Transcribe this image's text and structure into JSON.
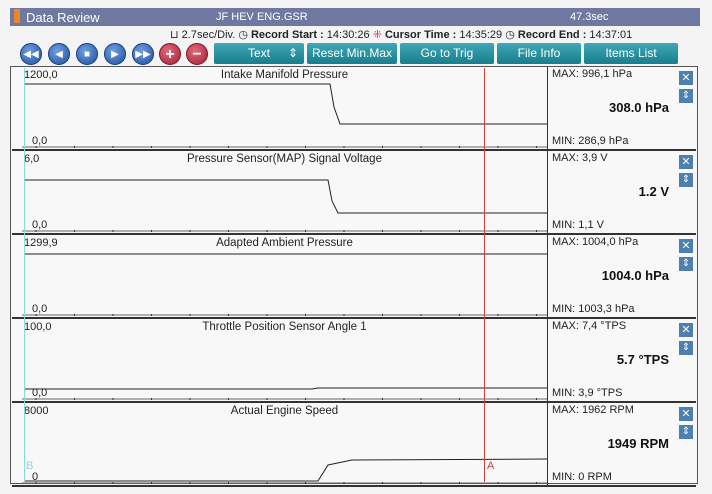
{
  "title": {
    "app": "Data Review",
    "file": "JF HEV ENG.GSR",
    "duration": "47.3sec"
  },
  "info": {
    "div": "2.7sec/Div.",
    "record_start_label": "Record Start :",
    "record_start": "14:30:26",
    "cursor_label": "Cursor Time :",
    "cursor": "14:35:29",
    "record_end_label": "Record End :",
    "record_end": "14:37:01"
  },
  "toolbar": {
    "text": "Text",
    "reset": "Reset Min.Max",
    "trig": "Go to Trig",
    "file_info": "File Info",
    "items": "Items List"
  },
  "markers": {
    "a": "A",
    "b": "B"
  },
  "panels": [
    {
      "title": "Intake Manifold Pressure",
      "ymax": "1200,0",
      "ymin": "0,0",
      "max": "MAX: 996,1 hPa",
      "min": "MIN: 286,9 hPa",
      "value": "308.0 hPa"
    },
    {
      "title": "Pressure Sensor(MAP) Signal Voltage",
      "ymax": "6,0",
      "ymin": "0,0",
      "max": "MAX:   3,9 V",
      "min": "MIN:   1,1 V",
      "value": "1.2 V"
    },
    {
      "title": "Adapted Ambient Pressure",
      "ymax": "1299,9",
      "ymin": "0,0",
      "max": "MAX: 1004,0 hPa",
      "min": "MIN: 1003,3 hPa",
      "value": "1004.0 hPa"
    },
    {
      "title": "Throttle Position Sensor Angle 1",
      "ymax": "100,0",
      "ymin": "0,0",
      "max": "MAX:   7,4 °TPS",
      "min": "MIN:   3,9 °TPS",
      "value": "5.7 °TPS"
    },
    {
      "title": "Actual Engine Speed",
      "ymax": "8000",
      "ymin": "0",
      "max": "MAX:  1962 RPM",
      "min": "MIN:    0 RPM",
      "value": "1949 RPM"
    }
  ]
}
